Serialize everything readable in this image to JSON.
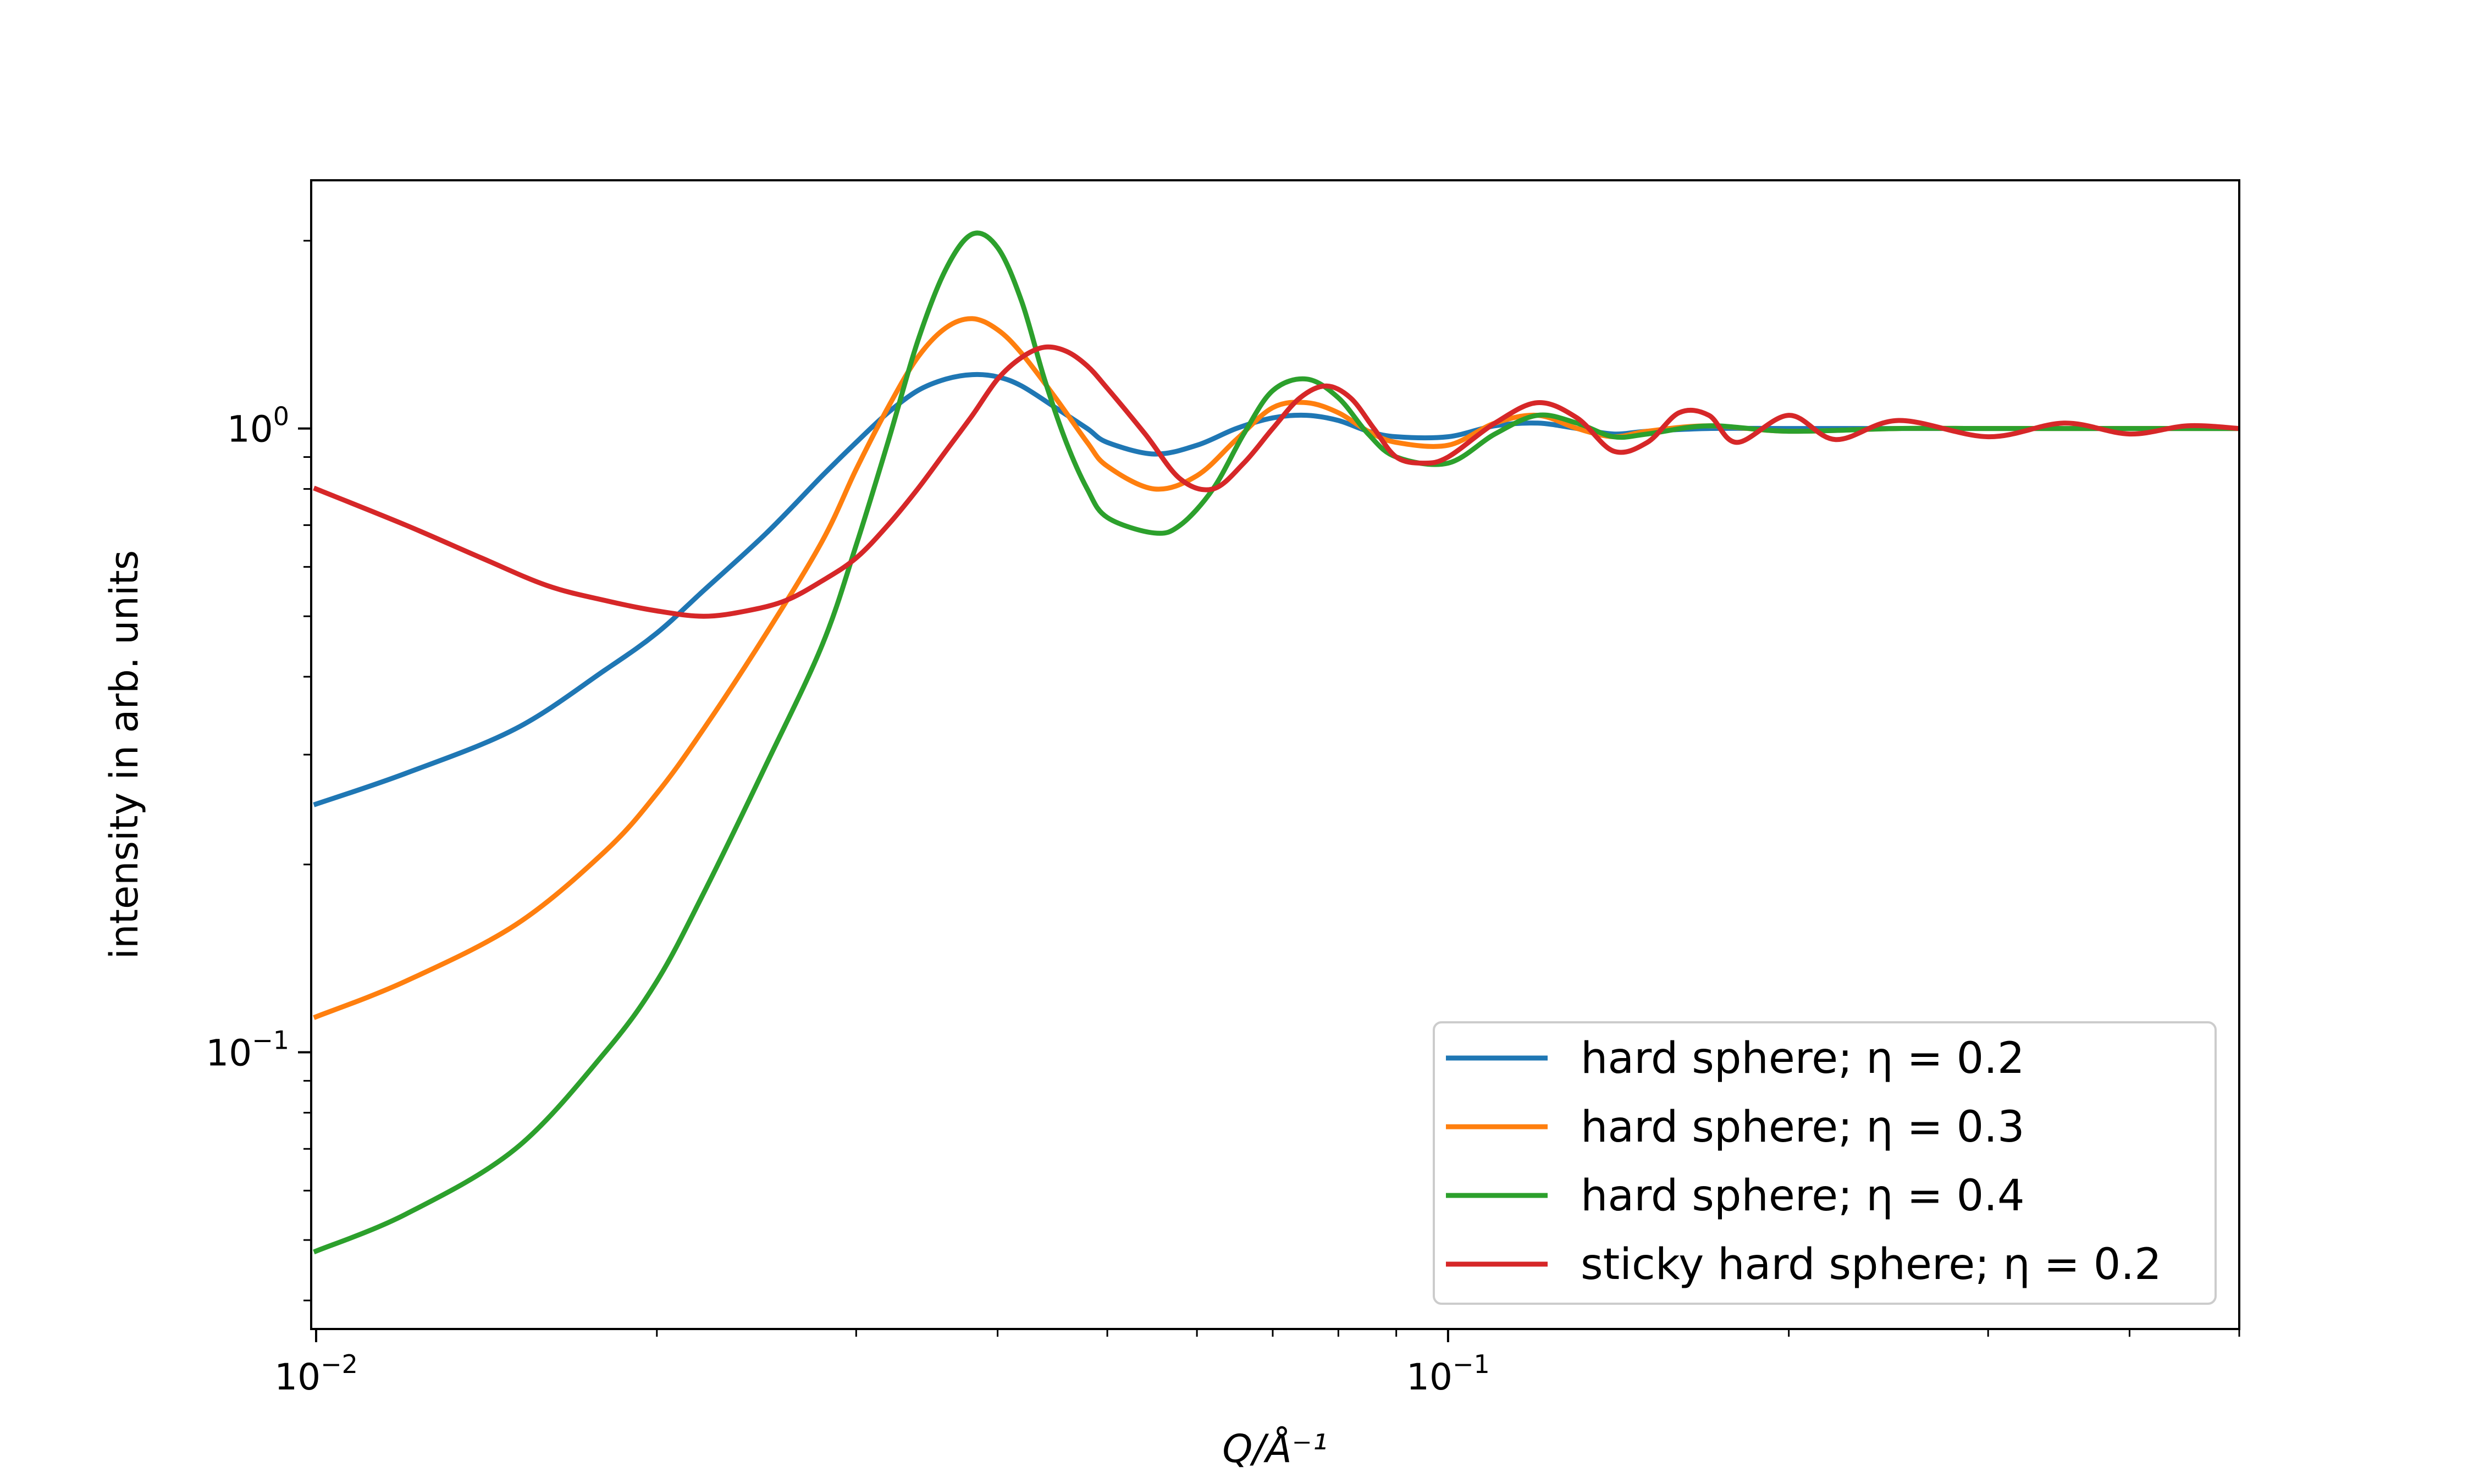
{
  "chart_data": {
    "type": "line",
    "title": "",
    "xlabel": "Q/Å⁻¹",
    "ylabel": "intensity in arb. units",
    "xscale": "log",
    "yscale": "log",
    "xlim": [
      0.0099,
      0.5
    ],
    "ylim": [
      0.036,
      2.5
    ],
    "grid": false,
    "legend_position": "lower-right",
    "x_tick_labels": [
      {
        "value": 0.01,
        "base": "10",
        "exp": "−2"
      },
      {
        "value": 0.1,
        "base": "10",
        "exp": "−1"
      }
    ],
    "y_tick_labels": [
      {
        "value": 0.1,
        "base": "10",
        "exp": "−1"
      },
      {
        "value": 1.0,
        "base": "10",
        "exp": "0"
      }
    ],
    "series": [
      {
        "name": "hard sphere; η = 0.2",
        "color": "#1f77b4",
        "x": [
          0.01,
          0.012,
          0.015,
          0.018,
          0.02,
          0.022,
          0.025,
          0.028,
          0.03,
          0.032,
          0.034,
          0.036,
          0.038,
          0.04,
          0.042,
          0.045,
          0.048,
          0.05,
          0.055,
          0.06,
          0.065,
          0.07,
          0.075,
          0.08,
          0.085,
          0.09,
          0.1,
          0.11,
          0.12,
          0.13,
          0.14,
          0.15,
          0.17,
          0.2,
          0.25,
          0.3,
          0.4,
          0.5
        ],
        "y": [
          0.25,
          0.28,
          0.33,
          0.41,
          0.47,
          0.55,
          0.68,
          0.84,
          0.95,
          1.06,
          1.15,
          1.2,
          1.22,
          1.21,
          1.17,
          1.08,
          1.0,
          0.95,
          0.91,
          0.94,
          1.0,
          1.04,
          1.05,
          1.03,
          0.99,
          0.97,
          0.97,
          1.01,
          1.02,
          1.0,
          0.98,
          0.99,
          1.0,
          1.0,
          1.0,
          1.0,
          1.0,
          1.0
        ]
      },
      {
        "name": "hard sphere; η = 0.3",
        "color": "#ff7f0e",
        "x": [
          0.01,
          0.012,
          0.015,
          0.018,
          0.02,
          0.022,
          0.025,
          0.028,
          0.03,
          0.032,
          0.034,
          0.036,
          0.038,
          0.04,
          0.042,
          0.045,
          0.048,
          0.05,
          0.055,
          0.06,
          0.065,
          0.07,
          0.075,
          0.08,
          0.085,
          0.09,
          0.1,
          0.11,
          0.12,
          0.13,
          0.14,
          0.15,
          0.17,
          0.2,
          0.25,
          0.3,
          0.4,
          0.5
        ],
        "y": [
          0.114,
          0.13,
          0.16,
          0.21,
          0.26,
          0.33,
          0.47,
          0.66,
          0.86,
          1.08,
          1.3,
          1.45,
          1.5,
          1.44,
          1.32,
          1.12,
          0.95,
          0.87,
          0.8,
          0.84,
          0.96,
          1.08,
          1.1,
          1.06,
          0.99,
          0.95,
          0.94,
          1.02,
          1.05,
          1.0,
          0.97,
          0.99,
          1.01,
          0.99,
          1.0,
          1.0,
          1.0,
          1.0
        ]
      },
      {
        "name": "hard sphere; η = 0.4",
        "color": "#2ca02c",
        "x": [
          0.01,
          0.012,
          0.015,
          0.018,
          0.02,
          0.022,
          0.025,
          0.028,
          0.03,
          0.032,
          0.034,
          0.036,
          0.038,
          0.04,
          0.042,
          0.044,
          0.046,
          0.048,
          0.05,
          0.055,
          0.058,
          0.062,
          0.066,
          0.07,
          0.075,
          0.08,
          0.085,
          0.09,
          0.1,
          0.11,
          0.12,
          0.13,
          0.14,
          0.15,
          0.17,
          0.2,
          0.25,
          0.3,
          0.4,
          0.5
        ],
        "y": [
          0.048,
          0.055,
          0.07,
          0.1,
          0.13,
          0.18,
          0.29,
          0.45,
          0.65,
          0.95,
          1.38,
          1.8,
          2.05,
          1.95,
          1.6,
          1.2,
          0.95,
          0.8,
          0.72,
          0.68,
          0.7,
          0.8,
          0.98,
          1.15,
          1.2,
          1.12,
          0.98,
          0.9,
          0.88,
          0.98,
          1.05,
          1.02,
          0.97,
          0.98,
          1.01,
          0.99,
          1.0,
          1.0,
          1.0,
          1.0
        ]
      },
      {
        "name": "sticky hard sphere; η = 0.2",
        "color": "#d62728",
        "x": [
          0.01,
          0.012,
          0.014,
          0.016,
          0.018,
          0.02,
          0.022,
          0.024,
          0.026,
          0.028,
          0.03,
          0.032,
          0.034,
          0.036,
          0.038,
          0.04,
          0.042,
          0.044,
          0.046,
          0.048,
          0.05,
          0.054,
          0.058,
          0.062,
          0.066,
          0.07,
          0.074,
          0.078,
          0.082,
          0.086,
          0.09,
          0.095,
          0.1,
          0.11,
          0.12,
          0.13,
          0.14,
          0.15,
          0.16,
          0.17,
          0.18,
          0.2,
          0.22,
          0.25,
          0.3,
          0.35,
          0.4,
          0.45,
          0.5
        ],
        "y": [
          0.8,
          0.7,
          0.62,
          0.56,
          0.53,
          0.51,
          0.5,
          0.51,
          0.53,
          0.57,
          0.62,
          0.7,
          0.8,
          0.92,
          1.05,
          1.2,
          1.3,
          1.35,
          1.33,
          1.26,
          1.16,
          0.98,
          0.83,
          0.8,
          0.88,
          1.0,
          1.12,
          1.17,
          1.12,
          1.0,
          0.9,
          0.88,
          0.9,
          1.02,
          1.1,
          1.04,
          0.92,
          0.95,
          1.06,
          1.05,
          0.95,
          1.05,
          0.96,
          1.03,
          0.97,
          1.02,
          0.98,
          1.01,
          1.0
        ]
      }
    ]
  }
}
